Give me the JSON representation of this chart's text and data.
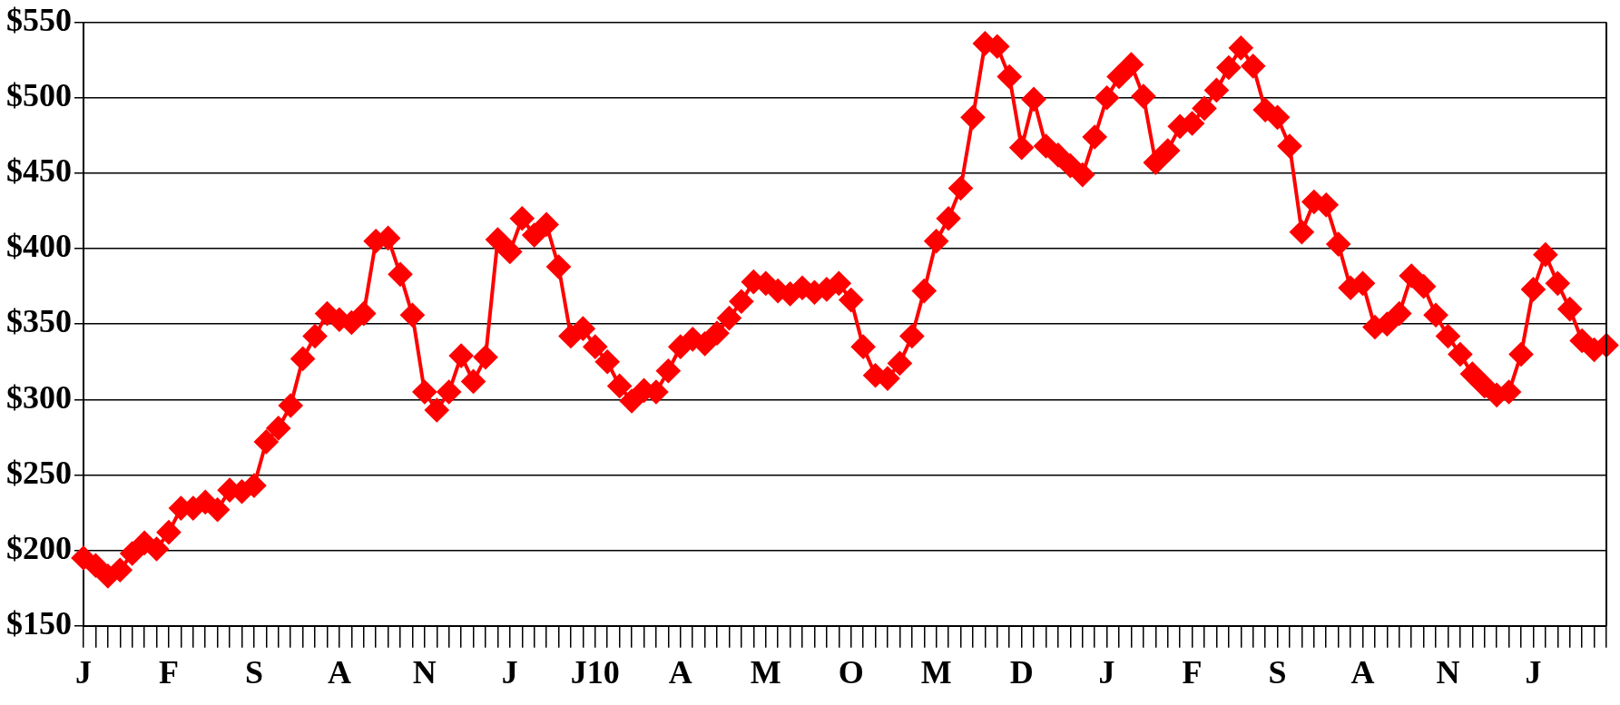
{
  "chart_data": {
    "type": "line",
    "categories": [
      "J",
      null,
      null,
      null,
      null,
      null,
      null,
      "F",
      null,
      null,
      null,
      null,
      null,
      null,
      "S",
      null,
      null,
      null,
      null,
      null,
      null,
      "A",
      null,
      null,
      null,
      null,
      null,
      null,
      "N",
      null,
      null,
      null,
      null,
      null,
      null,
      "J",
      null,
      null,
      null,
      null,
      null,
      null,
      "J10",
      null,
      null,
      null,
      null,
      null,
      null,
      "A",
      null,
      null,
      null,
      null,
      null,
      null,
      "M",
      null,
      null,
      null,
      null,
      null,
      null,
      "O",
      null,
      null,
      null,
      null,
      null,
      null,
      "M",
      null,
      null,
      null,
      null,
      null,
      null,
      "D",
      null,
      null,
      null,
      null,
      null,
      null,
      "J",
      null,
      null,
      null,
      null,
      null,
      null,
      "F",
      null,
      null,
      null,
      null,
      null,
      null,
      "S",
      null,
      null,
      null,
      null,
      null,
      null,
      "A",
      null,
      null,
      null,
      null,
      null,
      null,
      "N",
      null,
      null,
      null,
      null,
      null,
      null,
      "J",
      null,
      null,
      null,
      null,
      null,
      null
    ],
    "series": [
      {
        "color": "#ff0000",
        "values": [
          195,
          190,
          183,
          187,
          198,
          205,
          201,
          212,
          228,
          228,
          232,
          227,
          240,
          239,
          243,
          272,
          281,
          296,
          327,
          342,
          357,
          353,
          351,
          357,
          405,
          407,
          383,
          356,
          305,
          293,
          305,
          329,
          312,
          328,
          406,
          398,
          420,
          409,
          416,
          388,
          342,
          347,
          335,
          325,
          309,
          299,
          306,
          305,
          319,
          335,
          340,
          337,
          344,
          354,
          365,
          378,
          377,
          372,
          370,
          374,
          371,
          373,
          377,
          366,
          335,
          316,
          314,
          324,
          342,
          372,
          405,
          420,
          440,
          487,
          536,
          534,
          514,
          467,
          499,
          468,
          462,
          455,
          449,
          474,
          500,
          514,
          522,
          501,
          457,
          465,
          481,
          483,
          493,
          505,
          520,
          533,
          521,
          492,
          487,
          468,
          411,
          431,
          429,
          403,
          374,
          377,
          348,
          350,
          357,
          382,
          375,
          356,
          342,
          330,
          317,
          309,
          303,
          305,
          330,
          373,
          396,
          377,
          360,
          339,
          333,
          336
        ]
      }
    ],
    "ylim": [
      150,
      550
    ],
    "yticks": [
      {
        "value": 150,
        "label": "$150"
      },
      {
        "value": 200,
        "label": "$200"
      },
      {
        "value": 250,
        "label": "$250"
      },
      {
        "value": 300,
        "label": "$300"
      },
      {
        "value": 350,
        "label": "$350"
      },
      {
        "value": 400,
        "label": "$400"
      },
      {
        "value": 450,
        "label": "$450"
      },
      {
        "value": 500,
        "label": "$500"
      },
      {
        "value": 550,
        "label": "$550"
      }
    ],
    "grid": "y",
    "legend": false,
    "marker": "diamond",
    "line_style": "solid"
  }
}
